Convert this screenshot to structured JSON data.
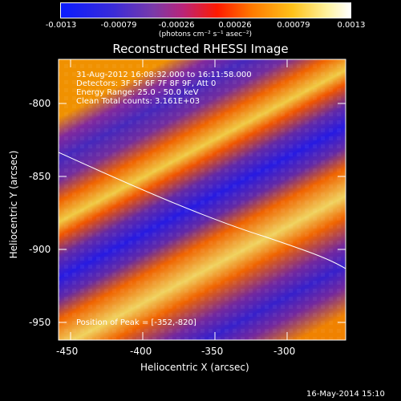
{
  "colorbar": {
    "ticks": [
      "-0.0013",
      "-0.00079",
      "-0.00026",
      "0.00026",
      "0.00079",
      "0.0013"
    ],
    "unit": "(photons cm⁻² s⁻¹ asec⁻²)"
  },
  "title": "Reconstructed RHESSI Image",
  "info": {
    "time": "31-Aug-2012 16:08:32.000 to 16:11:58.000",
    "detectors": "Detectors: 3F 5F 6F 7F 8F 9F, Att 0",
    "energy": "Energy Range: 25.0 - 50.0 keV",
    "clean": "Clean     Total counts: 3.161E+03"
  },
  "peak": "Position of Peak = [-352,-820]",
  "axes": {
    "xlabel": "Heliocentric X (arcsec)",
    "ylabel": "Heliocentric Y (arcsec)",
    "xticks": [
      "-450",
      "-400",
      "-350",
      "-300"
    ],
    "yticks": [
      "-800",
      "-850",
      "-900",
      "-950"
    ]
  },
  "footer": "16-May-2014 15:10",
  "colors": {
    "background": "#000000",
    "limb": "#ffffff"
  }
}
